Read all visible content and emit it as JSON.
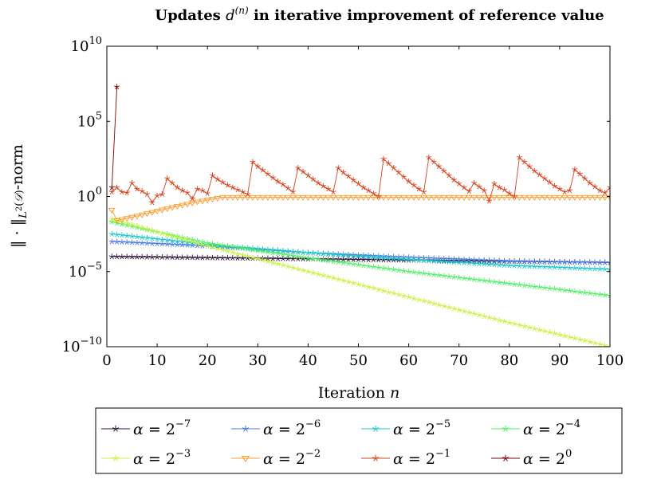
{
  "chart_data": {
    "type": "line",
    "title": "Updates d^(n) in iterative improvement of reference value",
    "xlabel": "Iteration n",
    "ylabel": "‖ · ‖_{L²(𝒟)}-norm",
    "xlim": [
      0,
      100
    ],
    "ylim_log10": [
      -10,
      10
    ],
    "y_scale": "log",
    "x_ticks": [
      0,
      10,
      20,
      30,
      40,
      50,
      60,
      70,
      80,
      90,
      100
    ],
    "x_tick_labels": [
      "0",
      "10",
      "20",
      "30",
      "40",
      "50",
      "60",
      "70",
      "80",
      "90",
      "100"
    ],
    "y_ticks_log10": [
      -10,
      -5,
      0,
      5,
      10
    ],
    "y_tick_labels": [
      {
        "base": "10",
        "exp": "−10"
      },
      {
        "base": "10",
        "exp": "−5"
      },
      {
        "base": "10",
        "exp": "0"
      },
      {
        "base": "10",
        "exp": "5"
      },
      {
        "base": "10",
        "exp": "10"
      }
    ],
    "grid": false,
    "legend_position": "bottom",
    "series": [
      {
        "name": "α = 2^−7",
        "base": "α = 2",
        "exp": "−7",
        "color": "#30123b",
        "marker": "star",
        "log10_points": [
          [
            1,
            -4.0
          ],
          [
            100,
            -4.4
          ]
        ]
      },
      {
        "name": "α = 2^−6",
        "base": "α = 2",
        "exp": "−6",
        "color": "#4779e6",
        "marker": "star",
        "log10_points": [
          [
            1,
            -3.0
          ],
          [
            20,
            -3.3
          ],
          [
            40,
            -3.75
          ],
          [
            60,
            -4.05
          ],
          [
            80,
            -4.3
          ],
          [
            100,
            -4.4
          ]
        ]
      },
      {
        "name": "α = 2^−5",
        "base": "α = 2",
        "exp": "−5",
        "color": "#1ac8c8",
        "marker": "star",
        "log10_points": [
          [
            1,
            -2.5
          ],
          [
            20,
            -3.2
          ],
          [
            40,
            -3.75
          ],
          [
            60,
            -4.2
          ],
          [
            80,
            -4.6
          ],
          [
            100,
            -4.85
          ]
        ]
      },
      {
        "name": "α = 2^−4",
        "base": "α = 2",
        "exp": "−4",
        "color": "#4cf060",
        "marker": "star",
        "log10_points": [
          [
            1,
            -1.7
          ],
          [
            20,
            -3.1
          ],
          [
            40,
            -4.1
          ],
          [
            60,
            -5.0
          ],
          [
            80,
            -5.8
          ],
          [
            100,
            -6.6
          ]
        ]
      },
      {
        "name": "α = 2^−3",
        "base": "α = 2",
        "exp": "−3",
        "color": "#c8f03c",
        "marker": "star",
        "log10_points": [
          [
            1,
            -1.5
          ],
          [
            20,
            -3.3
          ],
          [
            40,
            -5.0
          ],
          [
            60,
            -6.7
          ],
          [
            80,
            -8.4
          ],
          [
            100,
            -10.0
          ]
        ]
      },
      {
        "name": "α = 2^−2",
        "base": "α = 2",
        "exp": "−2",
        "color": "#fc9a2c",
        "marker": "tri-down",
        "log10_points": [
          [
            1,
            -0.9
          ],
          [
            2,
            -1.6
          ],
          [
            6,
            -1.3
          ],
          [
            12,
            -0.8
          ],
          [
            18,
            -0.35
          ],
          [
            23,
            -0.05
          ],
          [
            100,
            -0.05
          ]
        ]
      },
      {
        "name": "α = 2^−1",
        "base": "α = 2",
        "exp": "−1",
        "color": "#d6401a",
        "marker": "star",
        "log10_points": [
          [
            1,
            0.3
          ],
          [
            2,
            0.6
          ],
          [
            3,
            0.3
          ],
          [
            4,
            0.25
          ],
          [
            5,
            0.9
          ],
          [
            6,
            0.5
          ],
          [
            7,
            0.35
          ],
          [
            8,
            0.15
          ],
          [
            9,
            -0.4
          ],
          [
            10,
            0.05
          ],
          [
            11,
            0.15
          ],
          [
            12,
            1.2
          ],
          [
            13,
            0.9
          ],
          [
            14,
            0.6
          ],
          [
            15,
            0.4
          ],
          [
            16,
            0.25
          ],
          [
            17,
            -0.15
          ],
          [
            18,
            0.5
          ],
          [
            19,
            0.4
          ],
          [
            20,
            0.2
          ],
          [
            21,
            1.4
          ],
          [
            22,
            1.15
          ],
          [
            23,
            0.95
          ],
          [
            24,
            0.75
          ],
          [
            25,
            0.6
          ],
          [
            26,
            0.45
          ],
          [
            27,
            0.3
          ],
          [
            28,
            0.15
          ],
          [
            29,
            2.3
          ],
          [
            30,
            2.0
          ],
          [
            31,
            1.75
          ],
          [
            32,
            1.5
          ],
          [
            33,
            1.25
          ],
          [
            34,
            1.0
          ],
          [
            35,
            0.8
          ],
          [
            36,
            0.55
          ],
          [
            37,
            0.3
          ],
          [
            38,
            1.9
          ],
          [
            39,
            1.65
          ],
          [
            40,
            1.4
          ],
          [
            41,
            1.15
          ],
          [
            42,
            0.9
          ],
          [
            43,
            0.7
          ],
          [
            44,
            0.5
          ],
          [
            45,
            0.3
          ],
          [
            46,
            1.9
          ],
          [
            47,
            1.6
          ],
          [
            48,
            1.35
          ],
          [
            49,
            1.1
          ],
          [
            50,
            0.85
          ],
          [
            51,
            0.6
          ],
          [
            52,
            0.4
          ],
          [
            53,
            0.2
          ],
          [
            54,
            0.0
          ],
          [
            55,
            2.5
          ],
          [
            56,
            2.2
          ],
          [
            57,
            1.9
          ],
          [
            58,
            1.6
          ],
          [
            59,
            1.3
          ],
          [
            60,
            1.0
          ],
          [
            61,
            0.75
          ],
          [
            62,
            0.5
          ],
          [
            63,
            0.3
          ],
          [
            64,
            2.6
          ],
          [
            65,
            2.3
          ],
          [
            66,
            2.0
          ],
          [
            67,
            1.7
          ],
          [
            68,
            1.4
          ],
          [
            69,
            1.1
          ],
          [
            70,
            0.85
          ],
          [
            71,
            0.6
          ],
          [
            72,
            0.35
          ],
          [
            73,
            0.9
          ],
          [
            74,
            0.65
          ],
          [
            75,
            0.4
          ],
          [
            76,
            -0.3
          ],
          [
            77,
            0.85
          ],
          [
            78,
            0.6
          ],
          [
            79,
            0.45
          ],
          [
            80,
            0.2
          ],
          [
            81,
            0.0
          ],
          [
            82,
            2.6
          ],
          [
            83,
            2.3
          ],
          [
            84,
            2.0
          ],
          [
            85,
            1.7
          ],
          [
            86,
            1.45
          ],
          [
            87,
            1.2
          ],
          [
            88,
            0.95
          ],
          [
            89,
            0.7
          ],
          [
            90,
            0.5
          ],
          [
            91,
            0.3
          ],
          [
            92,
            0.4
          ],
          [
            93,
            1.8
          ],
          [
            94,
            1.5
          ],
          [
            95,
            1.2
          ],
          [
            96,
            0.9
          ],
          [
            97,
            0.65
          ],
          [
            98,
            0.4
          ],
          [
            99,
            0.25
          ],
          [
            100,
            0.6
          ]
        ]
      },
      {
        "name": "α = 2^0",
        "base": "α = 2",
        "exp": "0",
        "color": "#7a0403",
        "marker": "star",
        "log10_points": [
          [
            1,
            0.6
          ],
          [
            2,
            7.3
          ]
        ]
      }
    ]
  }
}
